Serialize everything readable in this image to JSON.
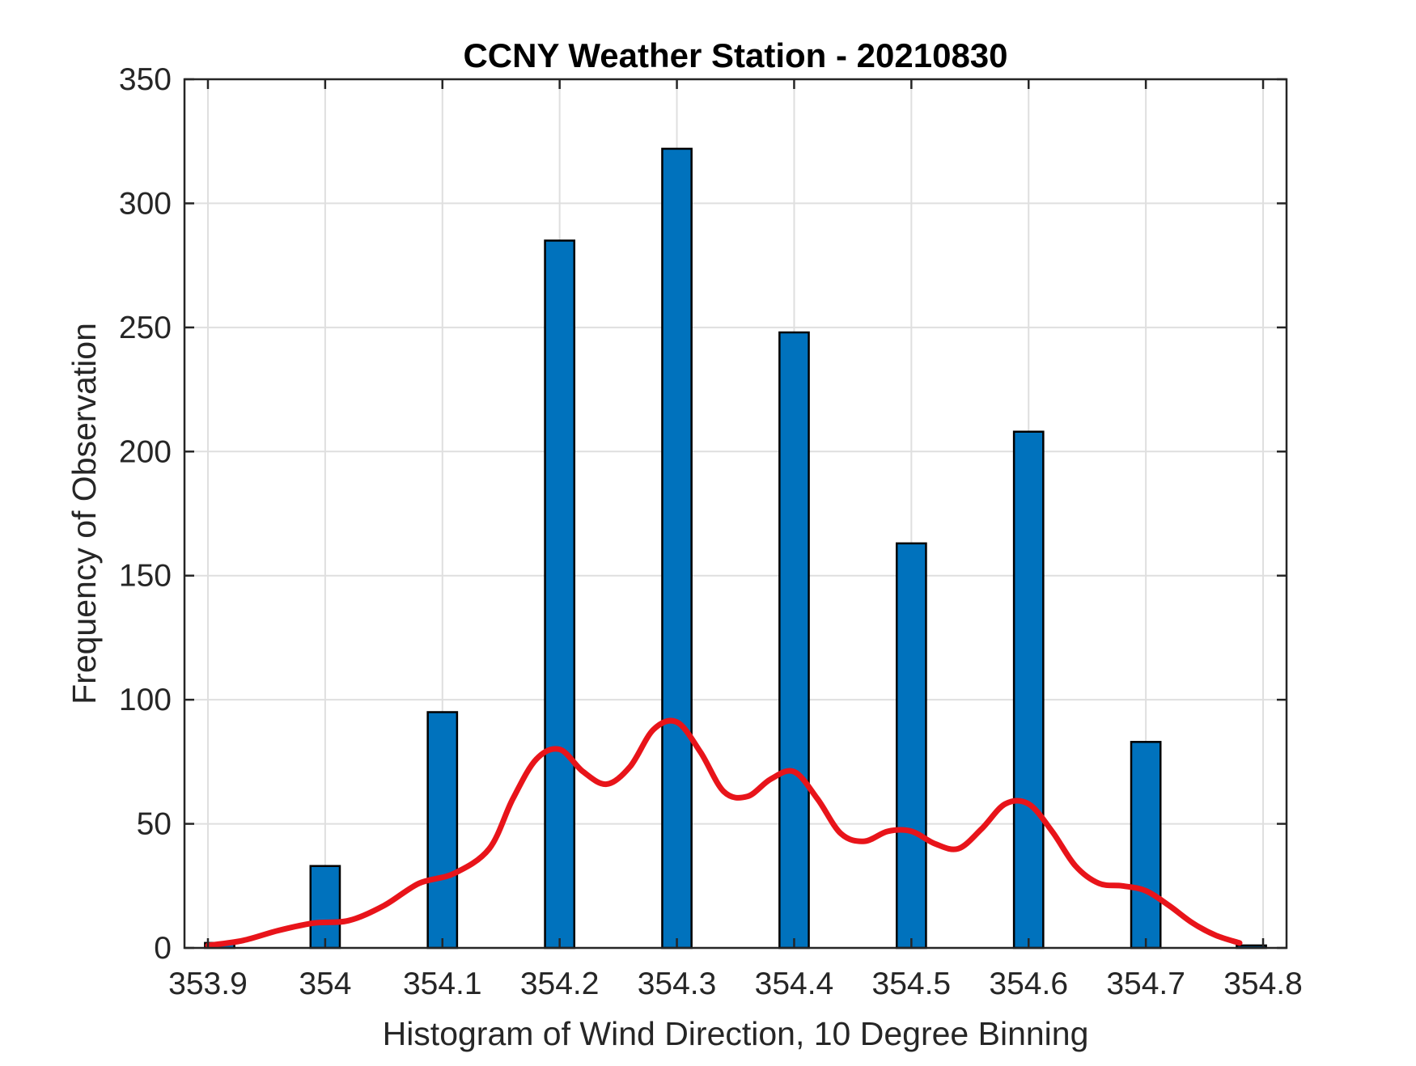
{
  "chart_data": {
    "type": "bar",
    "title": "CCNY Weather Station - 20210830",
    "xlabel": "Histogram of Wind Direction, 10 Degree Binning",
    "ylabel": "Frequency of Observation",
    "xlim": [
      353.88,
      354.82
    ],
    "ylim": [
      0,
      350
    ],
    "x_ticks": [
      353.9,
      354.0,
      354.1,
      354.2,
      354.3,
      354.4,
      354.5,
      354.6,
      354.7,
      354.8
    ],
    "x_tick_labels": [
      "353.9",
      "354",
      "354.1",
      "354.2",
      "354.3",
      "354.4",
      "354.5",
      "354.6",
      "354.7",
      "354.8"
    ],
    "y_ticks": [
      0,
      50,
      100,
      150,
      200,
      250,
      300,
      350
    ],
    "y_tick_labels": [
      "0",
      "50",
      "100",
      "150",
      "200",
      "250",
      "300",
      "350"
    ],
    "grid": true,
    "bar_width": 0.025,
    "bars": [
      {
        "x": 353.91,
        "value": 2
      },
      {
        "x": 354.0,
        "value": 33
      },
      {
        "x": 354.1,
        "value": 95
      },
      {
        "x": 354.2,
        "value": 285
      },
      {
        "x": 354.3,
        "value": 322
      },
      {
        "x": 354.4,
        "value": 248
      },
      {
        "x": 354.5,
        "value": 163
      },
      {
        "x": 354.6,
        "value": 208
      },
      {
        "x": 354.7,
        "value": 83
      },
      {
        "x": 354.79,
        "value": 1
      }
    ],
    "curve": {
      "name": "density fit",
      "x": [
        353.9,
        353.93,
        353.96,
        353.99,
        354.02,
        354.05,
        354.08,
        354.11,
        354.14,
        354.16,
        354.18,
        354.2,
        354.22,
        354.24,
        354.26,
        354.28,
        354.3,
        354.32,
        354.34,
        354.36,
        354.38,
        354.4,
        354.42,
        354.44,
        354.46,
        354.48,
        354.5,
        354.52,
        354.54,
        354.56,
        354.58,
        354.6,
        354.62,
        354.64,
        354.66,
        354.68,
        354.7,
        354.72,
        354.74,
        354.76,
        354.78
      ],
      "y": [
        1,
        3,
        7,
        10,
        11,
        17,
        26,
        30,
        40,
        60,
        76,
        80,
        71,
        66,
        73,
        88,
        91,
        79,
        63,
        61,
        68,
        71,
        60,
        46,
        43,
        47,
        47,
        42,
        40,
        48,
        58,
        58,
        47,
        33,
        26,
        25,
        23,
        17,
        10,
        5,
        2
      ]
    },
    "colors": {
      "bar": "#0072bd",
      "curve": "#e8141a"
    }
  }
}
